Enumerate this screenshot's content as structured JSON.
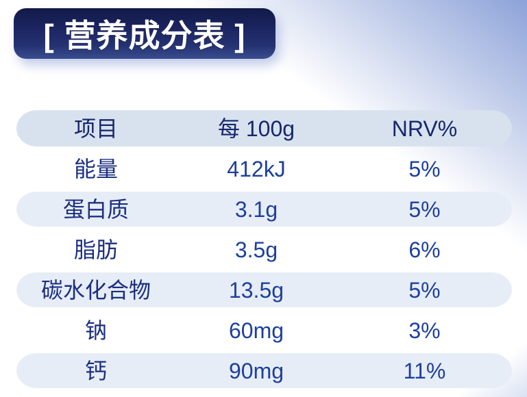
{
  "title": {
    "text": "[ 营养成分表 ]"
  },
  "table": {
    "columns": [
      "项目",
      "每 100g",
      "NRV%"
    ],
    "rows": [
      {
        "item": "能量",
        "per_100g": "412kJ",
        "nrv": "5%"
      },
      {
        "item": "蛋白质",
        "per_100g": "3.1g",
        "nrv": "5%"
      },
      {
        "item": "脂肪",
        "per_100g": "3.5g",
        "nrv": "6%"
      },
      {
        "item": "碳水化合物",
        "per_100g": "13.5g",
        "nrv": "5%"
      },
      {
        "item": "钠",
        "per_100g": "60mg",
        "nrv": "3%"
      },
      {
        "item": "钙",
        "per_100g": "90mg",
        "nrv": "11%"
      }
    ]
  },
  "colors": {
    "title_bar_top": "#111a46",
    "title_bar_bottom": "#3a4d8f",
    "title_text": "#ffffff",
    "header_row_bg": "#d8e2ef",
    "stripe_row_bg": "#e7edf6",
    "header_text": "#17266b",
    "label_text": "#1b2f80",
    "value_text": "#1c3f9e",
    "bg_corner_blue": "#8ca2d8"
  }
}
